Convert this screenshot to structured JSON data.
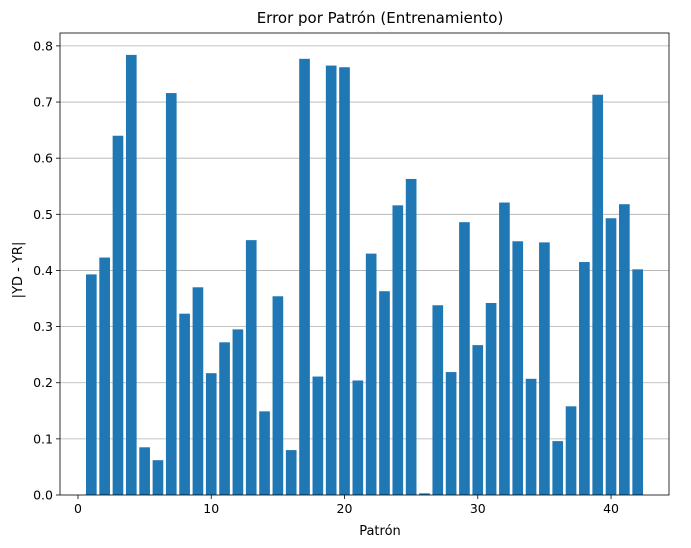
{
  "chart_data": {
    "type": "bar",
    "title": "Error por Patrón (Entrenamiento)",
    "xlabel": "Patrón",
    "ylabel": "|YD - YR|",
    "x": [
      1,
      2,
      3,
      4,
      5,
      6,
      7,
      8,
      9,
      10,
      11,
      12,
      13,
      14,
      15,
      16,
      17,
      18,
      19,
      20,
      21,
      22,
      23,
      24,
      25,
      26,
      27,
      28,
      29,
      30,
      31,
      32,
      33,
      34,
      35,
      36,
      37,
      38,
      39,
      40,
      41,
      42
    ],
    "values": [
      0.393,
      0.423,
      0.64,
      0.784,
      0.085,
      0.062,
      0.716,
      0.323,
      0.37,
      0.217,
      0.272,
      0.295,
      0.454,
      0.149,
      0.354,
      0.08,
      0.777,
      0.211,
      0.765,
      0.762,
      0.204,
      0.43,
      0.363,
      0.516,
      0.563,
      0.003,
      0.338,
      0.219,
      0.486,
      0.267,
      0.342,
      0.521,
      0.452,
      0.207,
      0.45,
      0.096,
      0.158,
      0.415,
      0.713,
      0.493,
      0.518,
      0.402
    ],
    "xlim": [
      -1.35,
      44.35
    ],
    "ylim": [
      0,
      0.823
    ],
    "xticks": [
      0,
      10,
      20,
      30,
      40
    ],
    "xtick_labels": [
      "0",
      "10",
      "20",
      "30",
      "40"
    ],
    "yticks": [
      0.0,
      0.1,
      0.2,
      0.3,
      0.4,
      0.5,
      0.6,
      0.7,
      0.8
    ],
    "ytick_labels": [
      "0.0",
      "0.1",
      "0.2",
      "0.3",
      "0.4",
      "0.5",
      "0.6",
      "0.7",
      "0.8"
    ],
    "grid": "y",
    "bar_color": "#1f77b4",
    "grid_color": "#b0b0b0"
  }
}
